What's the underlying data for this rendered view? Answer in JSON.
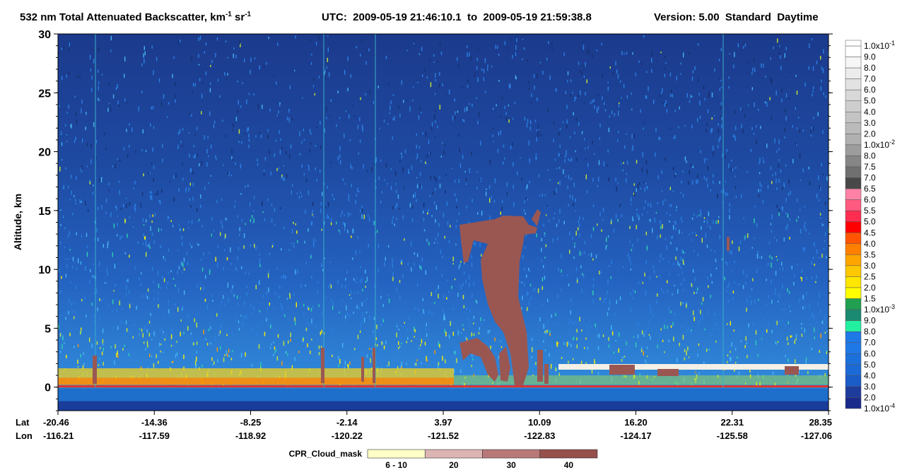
{
  "chart_data": {
    "type": "heatmap",
    "title": {
      "prefix": "532 nm Total Attenuated Backscatter, km",
      "unit_exp": "-1",
      "unit2": " sr",
      "unit2_exp": "-1"
    },
    "time_range": "UTC:  2009-05-19 21:46:10.1  to  2009-05-19 21:59:38.8",
    "version": "Version: 5.00  Standard  Daytime",
    "y_label": "Altitude, km",
    "ylim": [
      -2,
      30
    ],
    "yticks": [
      0,
      5,
      10,
      15,
      20,
      25,
      30
    ],
    "x_row_labels": [
      "Lat",
      "Lon"
    ],
    "lat": [
      "-20.46",
      "-14.36",
      "-8.25",
      "-2.14",
      "3.97",
      "10.09",
      "16.20",
      "22.31",
      "28.35"
    ],
    "lon": [
      "-116.21",
      "-117.59",
      "-118.92",
      "-120.22",
      "-121.52",
      "-122.83",
      "-124.17",
      "-125.58",
      "-127.06"
    ],
    "colorbar": {
      "labels": [
        {
          "text": "1.0x10",
          "exp": "-1"
        },
        "9.0",
        "8.0",
        "7.0",
        "6.0",
        "5.0",
        "4.0",
        "3.0",
        "2.0",
        {
          "text": "1.0x10",
          "exp": "-2"
        },
        "8.0",
        "7.5",
        "7.0",
        "6.5",
        "6.0",
        "5.5",
        "5.0",
        "4.5",
        "4.0",
        "3.5",
        "3.0",
        "2.5",
        "2.0",
        "1.5",
        {
          "text": "1.0x10",
          "exp": "-3"
        },
        "9.0",
        "8.0",
        "7.0",
        "6.0",
        "5.0",
        "4.0",
        "3.0",
        "2.0",
        {
          "text": "1.0x10",
          "exp": "-4"
        }
      ],
      "colors": [
        "#ffffff",
        "#f6f6f6",
        "#ececec",
        "#e2e2e2",
        "#d8d8d8",
        "#cecece",
        "#c4c4c4",
        "#bababa",
        "#b0b0b0",
        "#9c9c9c",
        "#868686",
        "#707070",
        "#484848",
        "#ff82a6",
        "#ff5a80",
        "#ff2d50",
        "#ff0000",
        "#ff5500",
        "#ff8000",
        "#ffa500",
        "#ffc800",
        "#ffe600",
        "#ffff00",
        "#20a050",
        "#1a8a72",
        "#22f0a0",
        "#1e78e6",
        "#1e78e6",
        "#1c70dc",
        "#1c6ad6",
        "#1a5cc8",
        "#1e3c9c",
        "#1a2a8c"
      ]
    },
    "cloud_mask": {
      "label": "CPR_Cloud_mask",
      "categories": [
        "6 - 10",
        "20",
        "30",
        "40"
      ],
      "colors": [
        "#ffffc8",
        "#dcb4b4",
        "#b97878",
        "#964f4b"
      ]
    }
  }
}
